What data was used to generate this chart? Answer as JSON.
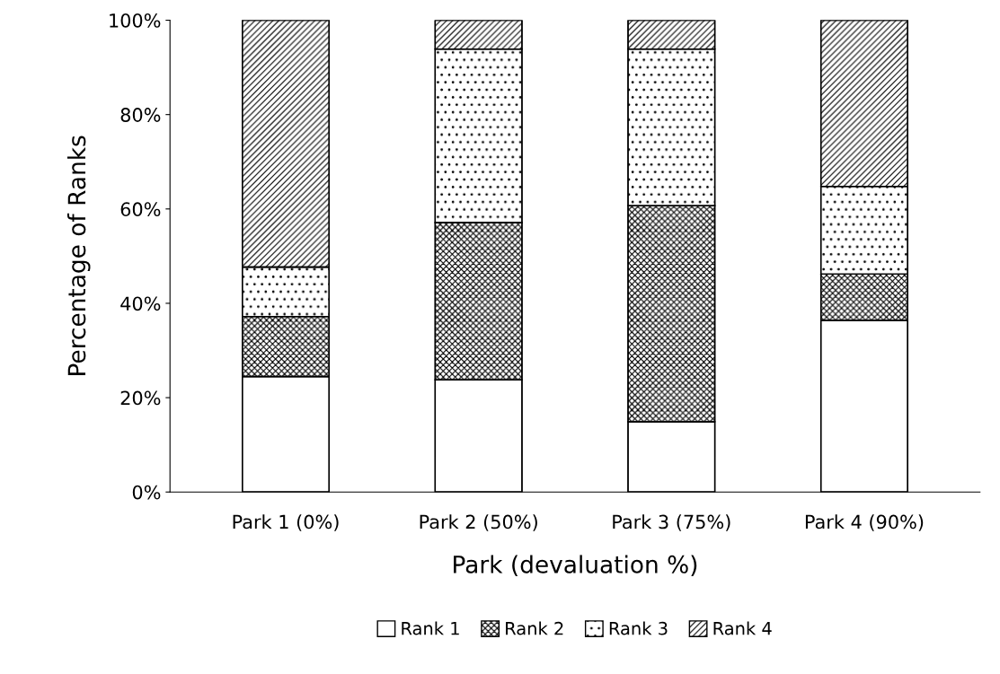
{
  "chart_data": {
    "type": "bar",
    "stacked": true,
    "xlabel": "Park (devaluation %)",
    "ylabel": "Percentage of Ranks",
    "categories": [
      "Park 1 (0%)",
      "Park 2 (50%)",
      "Park 3 (75%)",
      "Park 4 (90%)"
    ],
    "series": [
      {
        "name": "Rank 1",
        "color": "#ffffff",
        "values": [
          24.5,
          23.8,
          14.9,
          36.4
        ]
      },
      {
        "name": "Rank 2",
        "color": "#000000",
        "values": [
          12.7,
          33.3,
          45.8,
          9.8
        ]
      },
      {
        "name": "Rank 3",
        "color": "#000000",
        "values": [
          10.5,
          36.8,
          33.2,
          18.6
        ]
      },
      {
        "name": "Rank 4",
        "color": "#000000",
        "values": [
          52.3,
          6.1,
          6.1,
          35.2
        ]
      }
    ],
    "ylim": [
      0,
      100
    ],
    "yticks": [
      {
        "value": 0,
        "label": "0%"
      },
      {
        "value": 20,
        "label": "20%"
      },
      {
        "value": 40,
        "label": "40%"
      },
      {
        "value": 60,
        "label": "60%"
      },
      {
        "value": 80,
        "label": "80%"
      },
      {
        "value": 100,
        "label": "100%"
      }
    ],
    "grid": false,
    "legend": "bottom"
  }
}
